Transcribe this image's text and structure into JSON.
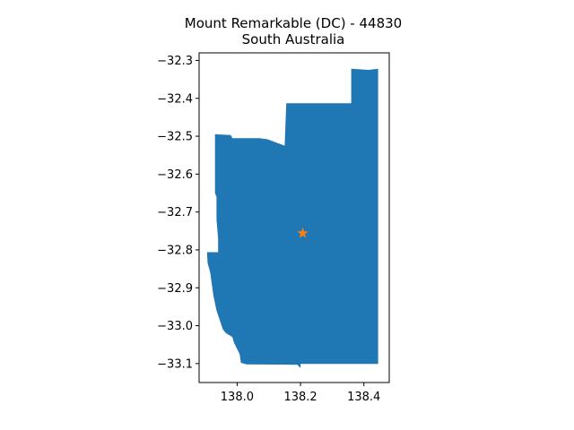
{
  "title": {
    "line1": "Mount Remarkable (DC) - 44830",
    "line2": "South Australia"
  },
  "chart_data": {
    "type": "map",
    "xlim": [
      137.88,
      138.48
    ],
    "ylim": [
      -33.15,
      -32.28
    ],
    "x_ticks": [
      138.0,
      138.2,
      138.4
    ],
    "x_tick_labels": [
      "138.0",
      "138.2",
      "138.4"
    ],
    "y_ticks": [
      -32.3,
      -32.4,
      -32.5,
      -32.6,
      -32.7,
      -32.8,
      -32.9,
      -33.0,
      -33.1
    ],
    "y_tick_labels": [
      "−32.3",
      "−32.4",
      "−32.5",
      "−32.6",
      "−32.7",
      "−32.8",
      "−32.9",
      "−33.0",
      "−33.1"
    ],
    "region": {
      "name": "Mount Remarkable (DC)",
      "fill": "#1f77b4",
      "boundary_lonlat": [
        [
          137.93,
          -32.495
        ],
        [
          137.98,
          -32.497
        ],
        [
          137.985,
          -32.505
        ],
        [
          138.07,
          -32.505
        ],
        [
          138.095,
          -32.508
        ],
        [
          138.15,
          -32.525
        ],
        [
          138.155,
          -32.413
        ],
        [
          138.36,
          -32.413
        ],
        [
          138.36,
          -32.322
        ],
        [
          138.415,
          -32.325
        ],
        [
          138.445,
          -32.322
        ],
        [
          138.445,
          -33.101
        ],
        [
          138.32,
          -33.101
        ],
        [
          138.2,
          -33.101
        ],
        [
          138.2,
          -33.112
        ],
        [
          138.19,
          -33.103
        ],
        [
          138.03,
          -33.102
        ],
        [
          138.012,
          -33.098
        ],
        [
          138.008,
          -33.075
        ],
        [
          137.99,
          -33.045
        ],
        [
          137.985,
          -33.03
        ],
        [
          137.965,
          -33.02
        ],
        [
          137.955,
          -33.01
        ],
        [
          137.945,
          -32.985
        ],
        [
          137.935,
          -32.96
        ],
        [
          137.925,
          -32.92
        ],
        [
          137.915,
          -32.86
        ],
        [
          137.907,
          -32.835
        ],
        [
          137.905,
          -32.806
        ],
        [
          137.94,
          -32.806
        ],
        [
          137.94,
          -32.77
        ],
        [
          137.935,
          -32.72
        ],
        [
          137.935,
          -32.66
        ],
        [
          137.93,
          -32.65
        ]
      ]
    },
    "marker": {
      "symbol": "star",
      "lon": 138.207,
      "lat": -32.756,
      "color": "#ff7f0e"
    }
  }
}
